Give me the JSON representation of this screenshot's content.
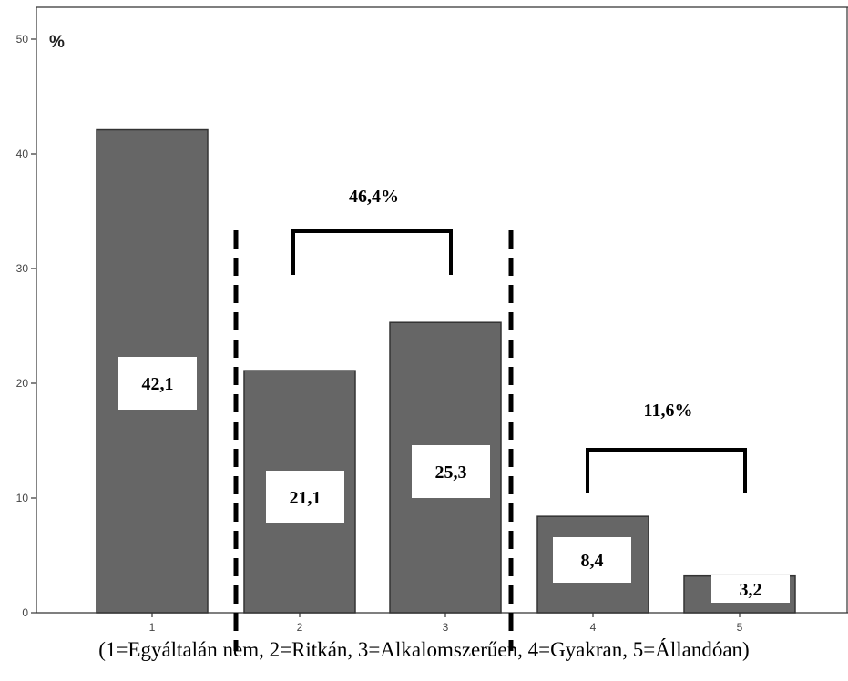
{
  "chart_data": {
    "type": "bar",
    "categories": [
      "1",
      "2",
      "3",
      "4",
      "5"
    ],
    "values": [
      42.1,
      21.1,
      25.3,
      8.4,
      3.2
    ],
    "data_labels": [
      "42,1",
      "21,1",
      "25,3",
      "8,4",
      "3,2"
    ],
    "y_unit_label": "%",
    "yticks": [
      0,
      10,
      20,
      30,
      40,
      50
    ],
    "ylim": [
      0,
      50
    ],
    "grid": false,
    "bar_color": "#666666",
    "annotations": [
      {
        "text": "46,4%",
        "categories": [
          "2",
          "3"
        ]
      },
      {
        "text": "11,6%",
        "categories": [
          "4",
          "5"
        ]
      }
    ],
    "separators_between": [
      [
        "1",
        "2"
      ],
      [
        "3",
        "4"
      ]
    ]
  },
  "caption": "(1=Egyáltalán nem, 2=Ritkán, 3=Alkalomszerűen, 4=Gyakran, 5=Állandóan)"
}
